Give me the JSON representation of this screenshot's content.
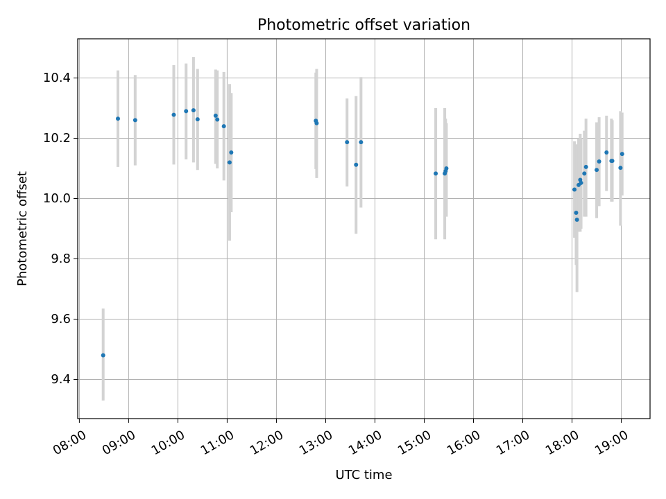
{
  "chart_data": {
    "type": "scatter",
    "title": "Photometric offset variation",
    "xlabel": "UTC time",
    "ylabel": "Photometric offset",
    "x_tick_labels": [
      "08:00",
      "09:00",
      "10:00",
      "11:00",
      "12:00",
      "13:00",
      "14:00",
      "15:00",
      "16:00",
      "17:00",
      "18:00",
      "19:00"
    ],
    "y_tick_labels": [
      "9.4",
      "9.6",
      "9.8",
      "10.0",
      "10.2",
      "10.4"
    ],
    "y_ticks": [
      9.4,
      9.6,
      9.8,
      10.0,
      10.2,
      10.4
    ],
    "xlim": [
      "07:58",
      "19:35"
    ],
    "ylim": [
      9.27,
      10.53
    ],
    "grid": true,
    "marker_color": "#1f77b4",
    "errorbar_color": "#d3d3d3",
    "points": [
      {
        "time": "08:29",
        "y": 9.48,
        "ylow": 9.33,
        "yhigh": 9.635
      },
      {
        "time": "08:47",
        "y": 10.265,
        "ylow": 10.105,
        "yhigh": 10.425
      },
      {
        "time": "09:08",
        "y": 10.26,
        "ylow": 10.11,
        "yhigh": 10.41
      },
      {
        "time": "09:55",
        "y": 10.278,
        "ylow": 10.113,
        "yhigh": 10.443
      },
      {
        "time": "10:10",
        "y": 10.29,
        "ylow": 10.13,
        "yhigh": 10.448
      },
      {
        "time": "10:19",
        "y": 10.293,
        "ylow": 10.12,
        "yhigh": 10.47
      },
      {
        "time": "10:24",
        "y": 10.263,
        "ylow": 10.095,
        "yhigh": 10.43
      },
      {
        "time": "10:46",
        "y": 10.275,
        "ylow": 10.115,
        "yhigh": 10.428
      },
      {
        "time": "10:48",
        "y": 10.262,
        "ylow": 10.1,
        "yhigh": 10.425
      },
      {
        "time": "10:56",
        "y": 10.24,
        "ylow": 10.06,
        "yhigh": 10.42
      },
      {
        "time": "11:03",
        "y": 10.12,
        "ylow": 9.86,
        "yhigh": 10.38
      },
      {
        "time": "11:05",
        "y": 10.153,
        "ylow": 9.955,
        "yhigh": 10.35
      },
      {
        "time": "12:48",
        "y": 10.258,
        "ylow": 10.098,
        "yhigh": 10.418
      },
      {
        "time": "12:49",
        "y": 10.25,
        "ylow": 10.068,
        "yhigh": 10.43
      },
      {
        "time": "13:26",
        "y": 10.187,
        "ylow": 10.04,
        "yhigh": 10.332
      },
      {
        "time": "13:37",
        "y": 10.112,
        "ylow": 9.883,
        "yhigh": 10.34
      },
      {
        "time": "13:43",
        "y": 10.187,
        "ylow": 9.97,
        "yhigh": 10.403
      },
      {
        "time": "15:14",
        "y": 10.083,
        "ylow": 9.865,
        "yhigh": 10.3
      },
      {
        "time": "15:25",
        "y": 10.083,
        "ylow": 9.865,
        "yhigh": 10.3
      },
      {
        "time": "15:26",
        "y": 10.091,
        "ylow": 9.96,
        "yhigh": 10.265
      },
      {
        "time": "15:27",
        "y": 10.1,
        "ylow": 9.94,
        "yhigh": 10.25
      },
      {
        "time": "18:03",
        "y": 10.03,
        "ylow": 9.87,
        "yhigh": 10.19
      },
      {
        "time": "18:05",
        "y": 9.953,
        "ylow": 9.78,
        "yhigh": 10.14
      },
      {
        "time": "18:06",
        "y": 9.93,
        "ylow": 9.69,
        "yhigh": 10.18
      },
      {
        "time": "18:08",
        "y": 10.045,
        "ylow": 9.89,
        "yhigh": 10.2
      },
      {
        "time": "18:10",
        "y": 10.062,
        "ylow": 9.89,
        "yhigh": 10.215
      },
      {
        "time": "18:11",
        "y": 10.052,
        "ylow": 9.9,
        "yhigh": 10.2
      },
      {
        "time": "18:15",
        "y": 10.083,
        "ylow": 9.94,
        "yhigh": 10.225
      },
      {
        "time": "18:17",
        "y": 10.105,
        "ylow": 9.94,
        "yhigh": 10.265
      },
      {
        "time": "18:30",
        "y": 10.095,
        "ylow": 9.935,
        "yhigh": 10.253
      },
      {
        "time": "18:33",
        "y": 10.123,
        "ylow": 9.975,
        "yhigh": 10.27
      },
      {
        "time": "18:42",
        "y": 10.153,
        "ylow": 10.025,
        "yhigh": 10.275
      },
      {
        "time": "18:48",
        "y": 10.125,
        "ylow": 9.99,
        "yhigh": 10.265
      },
      {
        "time": "18:49",
        "y": 10.125,
        "ylow": 9.99,
        "yhigh": 10.26
      },
      {
        "time": "18:59",
        "y": 10.102,
        "ylow": 9.91,
        "yhigh": 10.29
      },
      {
        "time": "19:01",
        "y": 10.148,
        "ylow": 10.01,
        "yhigh": 10.285
      }
    ]
  }
}
